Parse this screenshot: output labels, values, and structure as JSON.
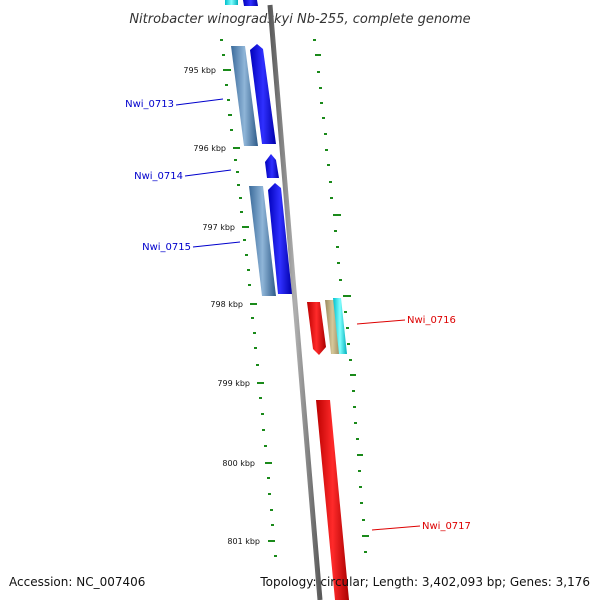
{
  "title": "Nitrobacter winogradskyi Nb-255, complete genome",
  "footer": {
    "accession": "Accession: NC_007406",
    "summary": "Topology: circular; Length: 3,402,093 bp; Genes: 3,176"
  },
  "ticks": [
    {
      "label": "795 kbp"
    },
    {
      "label": "796 kbp"
    },
    {
      "label": "797 kbp"
    },
    {
      "label": "798 kbp"
    },
    {
      "label": "799 kbp"
    },
    {
      "label": "800 kbp"
    },
    {
      "label": "801 kbp"
    }
  ],
  "genes": [
    {
      "label": "Nwi_0713",
      "strand": "forward",
      "color": "#0000cc"
    },
    {
      "label": "Nwi_0714",
      "strand": "forward",
      "color": "#0000cc"
    },
    {
      "label": "Nwi_0715",
      "strand": "forward",
      "color": "#0000cc"
    },
    {
      "label": "Nwi_0716",
      "strand": "reverse",
      "color": "#dd0000"
    },
    {
      "label": "Nwi_0717",
      "strand": "reverse",
      "color": "#dd0000"
    }
  ],
  "colors": {
    "forward_cds": "#0000ee",
    "forward_gene": "#4a7fb0",
    "reverse_cds": "#ee0000",
    "trna": "#b8a878",
    "misc": "#00e5ee",
    "backbone": "#808080",
    "gc_skew": "#1a8a1a"
  }
}
